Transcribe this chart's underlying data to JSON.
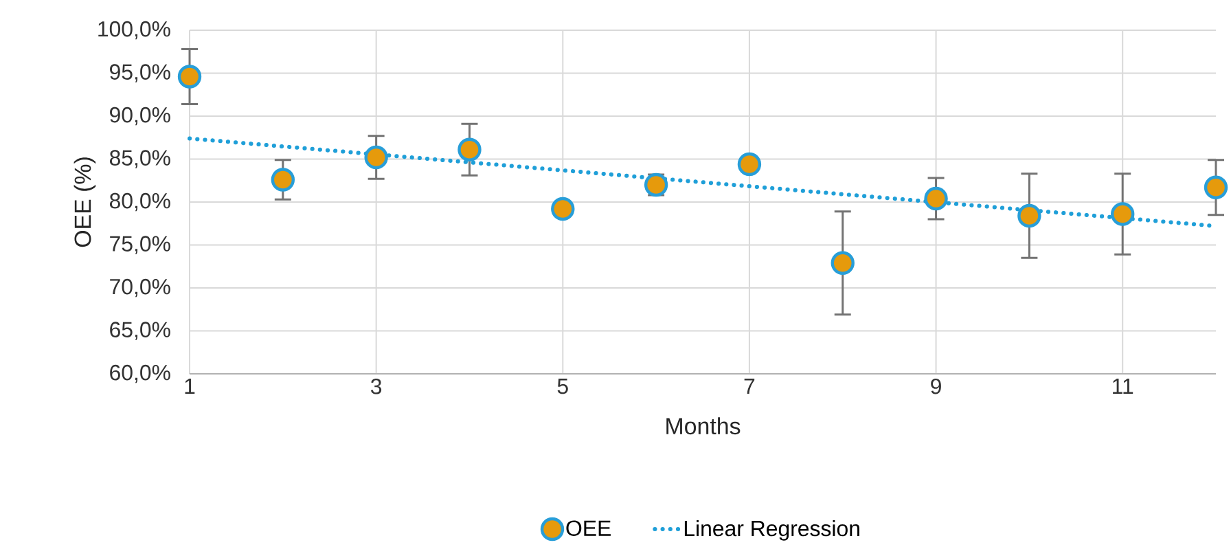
{
  "chart_data": {
    "type": "scatter",
    "xlabel": "Months",
    "ylabel": "OEE (%)",
    "xlim": [
      1,
      12
    ],
    "xticks": [
      1,
      3,
      5,
      7,
      9,
      11
    ],
    "ylim": [
      60,
      100
    ],
    "yticks": [
      {
        "value": 60,
        "label": "60,0%"
      },
      {
        "value": 65,
        "label": "65,0%"
      },
      {
        "value": 70,
        "label": "70,0%"
      },
      {
        "value": 75,
        "label": "75,0%"
      },
      {
        "value": 80,
        "label": "80,0%"
      },
      {
        "value": 85,
        "label": "85,0%"
      },
      {
        "value": 90,
        "label": "90,0%"
      },
      {
        "value": 95,
        "label": "95,0%"
      },
      {
        "value": 100,
        "label": "100,0%"
      }
    ],
    "grid": true,
    "legend": "bottom",
    "series": [
      {
        "name": "OEE",
        "marker": "circle",
        "color": "#e69a0c",
        "x": [
          1,
          2,
          3,
          4,
          5,
          6,
          7,
          8,
          9,
          10,
          11,
          12
        ],
        "values": [
          94.6,
          82.6,
          85.2,
          86.1,
          79.2,
          82.0,
          84.4,
          72.9,
          80.4,
          78.4,
          78.6,
          81.7
        ],
        "errors": [
          3.2,
          2.3,
          2.5,
          3.0,
          null,
          1.2,
          null,
          6.0,
          2.4,
          4.9,
          4.7,
          3.2
        ]
      },
      {
        "name": "Linear Regression",
        "type": "line",
        "marker": "none",
        "line_style": "dotted",
        "color": "#1f9fd8",
        "x": [
          1,
          12
        ],
        "values": [
          87.4,
          77.2
        ]
      }
    ]
  }
}
